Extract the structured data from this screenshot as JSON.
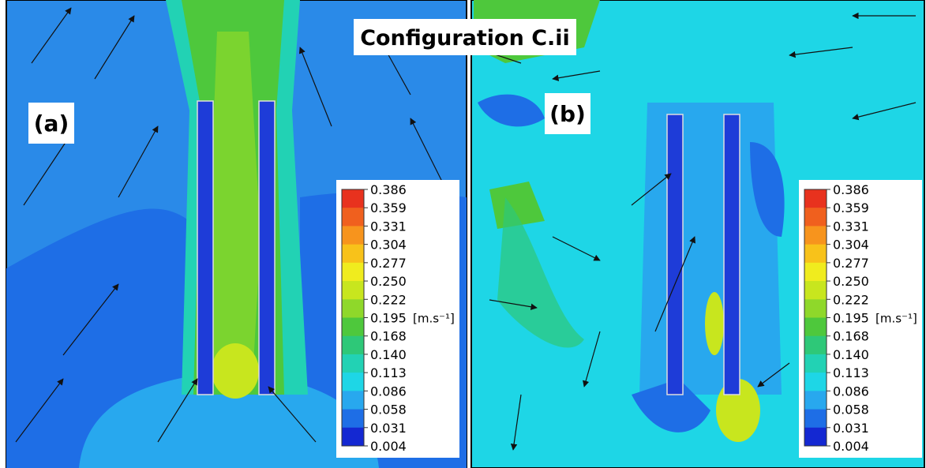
{
  "figure": {
    "title": "Configuration C.ii",
    "panels": [
      {
        "label": "(a)"
      },
      {
        "label": "(b)"
      }
    ],
    "colorbar": {
      "ticks": [
        "0.386",
        "0.359",
        "0.331",
        "0.304",
        "0.277",
        "0.250",
        "0.222",
        "0.195",
        "0.168",
        "0.140",
        "0.113",
        "0.086",
        "0.058",
        "0.031",
        "0.004"
      ],
      "unit": "[m.s⁻¹]"
    }
  }
}
